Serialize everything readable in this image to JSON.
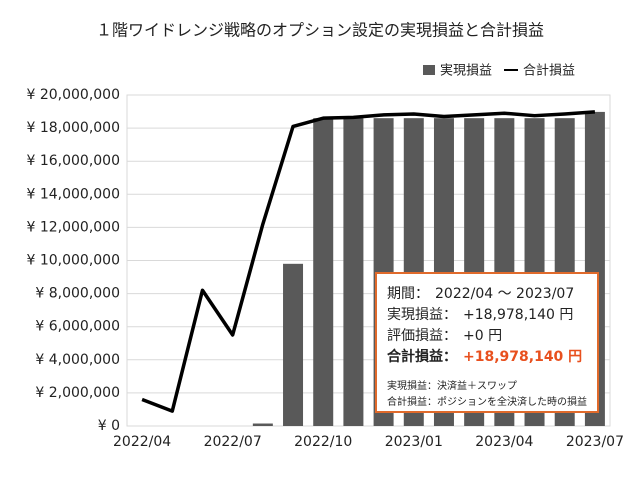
{
  "chart_data": {
    "type": "bar",
    "title": "１階ワイドレンジ戦略のオプション設定の実現損益と合計損益",
    "categories": [
      "2022/04",
      null,
      null,
      "2022/07",
      null,
      null,
      "2022/10",
      null,
      null,
      "2023/01",
      null,
      null,
      "2023/04",
      null,
      null,
      "2023/07"
    ],
    "series": [
      {
        "name": "実現損益",
        "type": "bar",
        "color": "#595959",
        "values": [
          0,
          0,
          0,
          0,
          150000,
          9800000,
          18600000,
          18600000,
          18600000,
          18600000,
          18600000,
          18600000,
          18600000,
          18600000,
          18600000,
          18978140
        ]
      },
      {
        "name": "合計損益",
        "type": "line",
        "color": "#000000",
        "values": [
          1600000,
          900000,
          8200000,
          5500000,
          12200000,
          18100000,
          18600000,
          18650000,
          18800000,
          18850000,
          18700000,
          18800000,
          18900000,
          18750000,
          18850000,
          18978140
        ]
      }
    ],
    "ylim": [
      0,
      20000000
    ],
    "yticks": [
      {
        "value": 0,
        "label": "¥ 0"
      },
      {
        "value": 2000000,
        "label": "¥ 2,000,000"
      },
      {
        "value": 4000000,
        "label": "¥ 4,000,000"
      },
      {
        "value": 6000000,
        "label": "¥ 6,000,000"
      },
      {
        "value": 8000000,
        "label": "¥ 8,000,000"
      },
      {
        "value": 10000000,
        "label": "¥ 10,000,000"
      },
      {
        "value": 12000000,
        "label": "¥ 12,000,000"
      },
      {
        "value": 14000000,
        "label": "¥ 14,000,000"
      },
      {
        "value": 16000000,
        "label": "¥ 16,000,000"
      },
      {
        "value": 18000000,
        "label": "¥ 18,000,000"
      },
      {
        "value": 20000000,
        "label": "¥ 20,000,000"
      }
    ],
    "grid": true,
    "legend": "top-right",
    "annotation": {
      "lines": [
        {
          "label": "期間：",
          "value": "2022/04 ～ 2023/07"
        },
        {
          "label": "実現損益：",
          "value": "+18,978,140 円"
        },
        {
          "label": "評価損益：",
          "value": "+0 円"
        },
        {
          "label": "合計損益：",
          "value": "+18,978,140 円"
        }
      ],
      "notes": [
        "実現損益：決済益＋スワップ",
        "合計損益：ポジションを全決済した時の損益"
      ],
      "border_color": "#e06a2b",
      "highlight_color": "#e8501e"
    }
  }
}
